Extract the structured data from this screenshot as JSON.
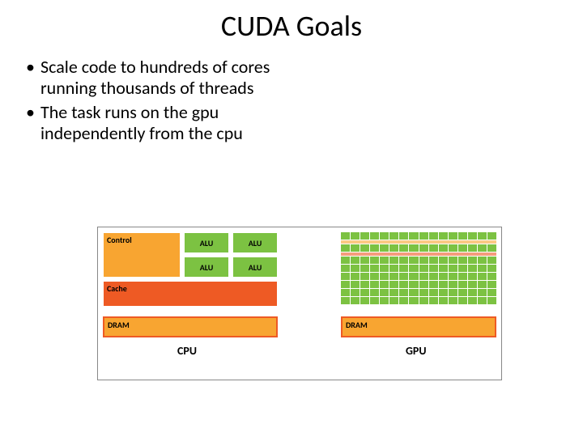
{
  "title": "CUDA Goals",
  "bullets": [
    "Scale code to hundreds of cores running thousands of threads",
    "The task runs on the gpu independently from the cpu"
  ],
  "diagram": {
    "cpu": {
      "label": "CPU",
      "control": {
        "label": "Control",
        "color": "#f8a531"
      },
      "alu": {
        "label": "ALU",
        "color": "#7cc242"
      },
      "cache": {
        "label": "Cache",
        "color": "#ee5a24"
      },
      "dram": {
        "label": "DRAM",
        "color": "#f8a531",
        "border": "#ee5a24"
      }
    },
    "gpu": {
      "label": "GPU",
      "cell_colors": {
        "alu": "#7cc242",
        "ctrl": "#f8a531",
        "cache": "#ee5a24"
      },
      "dram": {
        "label": "DRAM",
        "color": "#f8a531",
        "border": "#ee5a24"
      },
      "grid": {
        "cols": 16,
        "alu_rows": 8
      }
    },
    "background": "#ffffff"
  },
  "fonts": {
    "title_pt": 36,
    "body_pt": 22,
    "box_label_pt": 10,
    "col_label_pt": 14
  }
}
